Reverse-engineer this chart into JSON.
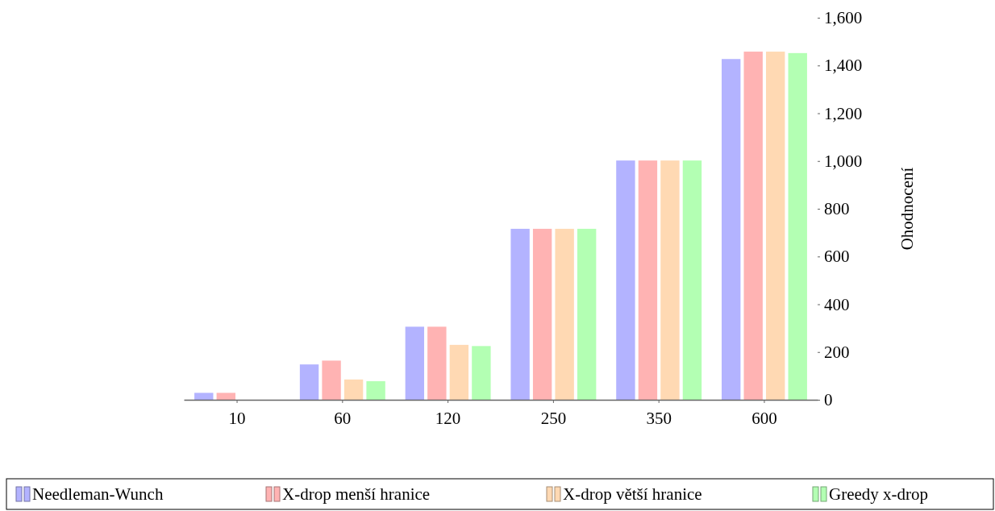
{
  "chart_data": {
    "type": "bar",
    "ylabel": "Ohodnocení",
    "categories": [
      "10",
      "60",
      "120",
      "250",
      "350",
      "600"
    ],
    "series": [
      {
        "name": "Needleman-Wunch",
        "color": "#b3b3ff",
        "values": [
          29,
          148,
          306,
          716,
          1002,
          1427
        ]
      },
      {
        "name": "X-drop menší hranice",
        "color": "#ffb3b3",
        "values": [
          29,
          164,
          306,
          716,
          1002,
          1458
        ]
      },
      {
        "name": "X-drop větší hranice",
        "color": "#ffd9b3",
        "values": [
          0,
          85,
          230,
          716,
          1002,
          1458
        ]
      },
      {
        "name": "Greedy x-drop",
        "color": "#b3ffb3",
        "values": [
          0,
          78,
          225,
          716,
          1002,
          1452
        ]
      }
    ],
    "ylim": [
      0,
      1600
    ],
    "yticks": [
      0,
      200,
      400,
      600,
      800,
      {
        "value": 1000,
        "label": "1,000"
      },
      {
        "value": 1200,
        "label": "1,200"
      },
      {
        "value": 1400,
        "label": "1,400"
      },
      {
        "value": 1600,
        "label": "1,600"
      }
    ],
    "grid": false,
    "legend": "bottom"
  }
}
